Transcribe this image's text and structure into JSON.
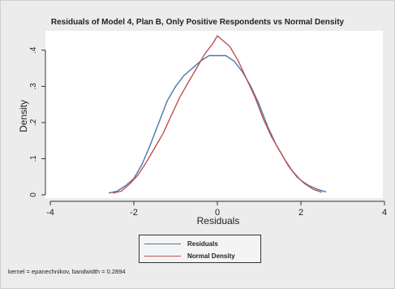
{
  "chart_data": {
    "type": "line",
    "title": "Residuals of Model 4, Plan B, Only Positive Respondents vs Normal Density",
    "xlabel": "Residuals",
    "ylabel": "Density",
    "xlim": [
      -4,
      4
    ],
    "ylim": [
      0,
      0.44
    ],
    "xticks": [
      "-4",
      "-2",
      "0",
      "2",
      "4"
    ],
    "yticks": [
      {
        "value": 0,
        "label": "0"
      },
      {
        "value": 0.1,
        "label": ".1"
      },
      {
        "value": 0.2,
        "label": ".2"
      },
      {
        "value": 0.3,
        "label": ".3"
      },
      {
        "value": 0.4,
        "label": ".4"
      }
    ],
    "grid": false,
    "legend": "bottom-center",
    "series": [
      {
        "name": "Residuals",
        "color": "#4a77a8",
        "x": [
          -2.6,
          -2.4,
          -2.2,
          -2.0,
          -1.8,
          -1.6,
          -1.4,
          -1.2,
          -1.0,
          -0.8,
          -0.6,
          -0.4,
          -0.2,
          0.0,
          0.2,
          0.4,
          0.6,
          0.8,
          1.0,
          1.2,
          1.4,
          1.6,
          1.8,
          2.0,
          2.2,
          2.4,
          2.6
        ],
        "y": [
          0.005,
          0.01,
          0.025,
          0.045,
          0.085,
          0.14,
          0.2,
          0.26,
          0.3,
          0.33,
          0.35,
          0.37,
          0.385,
          0.385,
          0.385,
          0.37,
          0.34,
          0.3,
          0.25,
          0.19,
          0.14,
          0.1,
          0.065,
          0.04,
          0.025,
          0.015,
          0.008
        ]
      },
      {
        "name": "Normal Density",
        "color": "#c0504d",
        "x": [
          -2.5,
          -2.3,
          -2.1,
          -1.9,
          -1.7,
          -1.5,
          -1.3,
          -1.1,
          -0.9,
          -0.7,
          -0.5,
          -0.3,
          -0.1,
          0.0,
          0.1,
          0.3,
          0.5,
          0.7,
          0.9,
          1.1,
          1.3,
          1.5,
          1.7,
          1.9,
          2.1,
          2.3,
          2.5
        ],
        "y": [
          0.005,
          0.01,
          0.03,
          0.055,
          0.09,
          0.13,
          0.17,
          0.22,
          0.27,
          0.31,
          0.35,
          0.39,
          0.42,
          0.44,
          0.43,
          0.41,
          0.37,
          0.32,
          0.27,
          0.21,
          0.16,
          0.12,
          0.08,
          0.05,
          0.03,
          0.015,
          0.007
        ]
      }
    ],
    "note": "kernel = epanechnikov, bandwidth = 0.2894"
  }
}
